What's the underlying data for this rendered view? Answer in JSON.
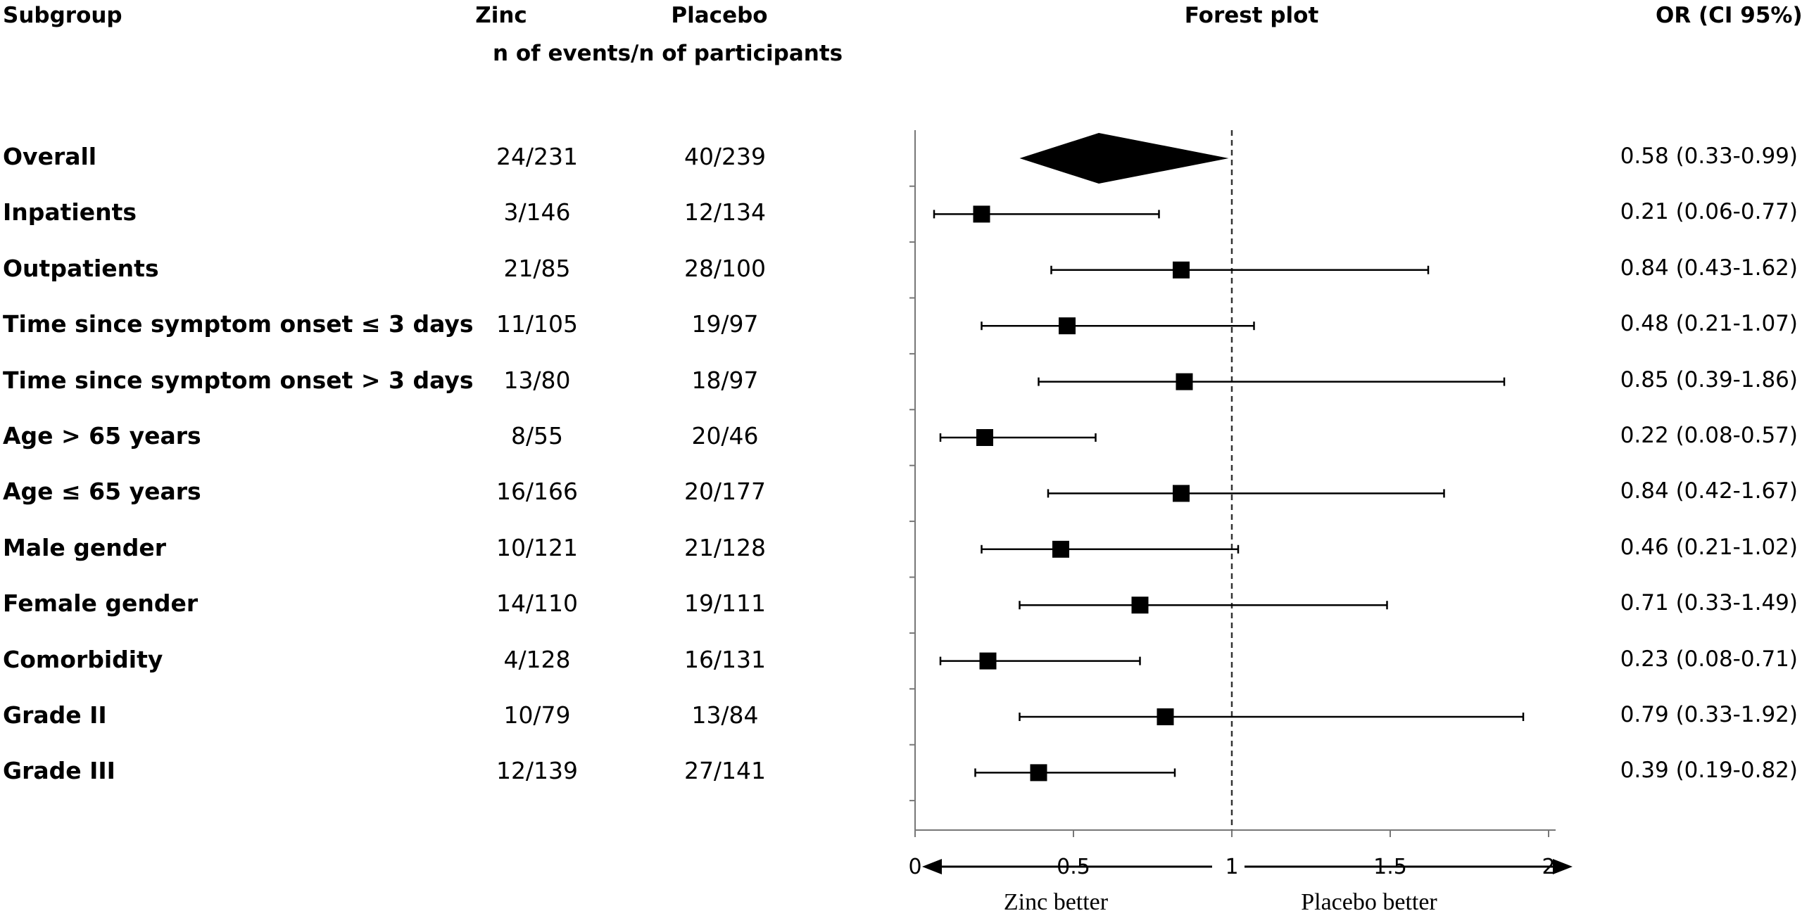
{
  "headers": {
    "subgroup": "Subgroup",
    "zinc": "Zinc",
    "placebo": "Placebo",
    "events_caption": "n of events/n of participants",
    "forest": "Forest plot",
    "or": "OR (CI 95%)"
  },
  "rows": [
    {
      "label": "Overall",
      "zinc": "24/231",
      "placebo": "40/239",
      "or_text": "0.58 (0.33-0.99)"
    },
    {
      "label": "Inpatients",
      "zinc": "3/146",
      "placebo": "12/134",
      "or_text": "0.21 (0.06-0.77)"
    },
    {
      "label": "Outpatients",
      "zinc": "21/85",
      "placebo": "28/100",
      "or_text": "0.84 (0.43-1.62)"
    },
    {
      "label": "Time since symptom onset ≤ 3 days",
      "zinc": "11/105",
      "placebo": "19/97",
      "or_text": "0.48 (0.21-1.07)"
    },
    {
      "label": "Time since symptom onset > 3 days",
      "zinc": "13/80",
      "placebo": "18/97",
      "or_text": "0.85 (0.39-1.86)"
    },
    {
      "label": "Age > 65 years",
      "zinc": "8/55",
      "placebo": "20/46",
      "or_text": "0.22 (0.08-0.57)"
    },
    {
      "label": "Age ≤ 65 years",
      "zinc": "16/166",
      "placebo": "20/177",
      "or_text": "0.84 (0.42-1.67)"
    },
    {
      "label": "Male gender",
      "zinc": "10/121",
      "placebo": "21/128",
      "or_text": "0.46 (0.21-1.02)"
    },
    {
      "label": "Female gender",
      "zinc": "14/110",
      "placebo": "19/111",
      "or_text": "0.71 (0.33-1.49)"
    },
    {
      "label": "Comorbidity",
      "zinc": "4/128",
      "placebo": "16/131",
      "or_text": "0.23 (0.08-0.71)"
    },
    {
      "label": "Grade II",
      "zinc": "10/79",
      "placebo": "13/84",
      "or_text": "0.79 (0.33-1.92)"
    },
    {
      "label": "Grade III",
      "zinc": "12/139",
      "placebo": "27/141",
      "or_text": "0.39 (0.19-0.82)"
    }
  ],
  "chart_data": {
    "type": "forest",
    "title": "Forest plot",
    "categories": [
      "Overall",
      "Inpatients",
      "Outpatients",
      "Time since symptom onset ≤ 3 days",
      "Time since symptom onset > 3 days",
      "Age > 65 years",
      "Age ≤ 65 years",
      "Male gender",
      "Female gender",
      "Comorbidity",
      "Grade II",
      "Grade III"
    ],
    "or": [
      0.58,
      0.21,
      0.84,
      0.48,
      0.85,
      0.22,
      0.84,
      0.46,
      0.71,
      0.23,
      0.79,
      0.39
    ],
    "ci_low": [
      0.33,
      0.06,
      0.43,
      0.21,
      0.39,
      0.08,
      0.42,
      0.21,
      0.33,
      0.08,
      0.33,
      0.19
    ],
    "ci_high": [
      0.99,
      0.77,
      1.62,
      1.07,
      1.86,
      0.57,
      1.67,
      1.02,
      1.49,
      0.71,
      1.92,
      0.82
    ],
    "xlim": [
      0,
      2
    ],
    "xticks": [
      "0",
      "0.5",
      "1",
      "1.5",
      "2"
    ],
    "reference_line": 1,
    "direction_left": "Zinc better",
    "direction_right": "Placebo better",
    "summary_row": "Overall",
    "marker_color": "#000000"
  }
}
